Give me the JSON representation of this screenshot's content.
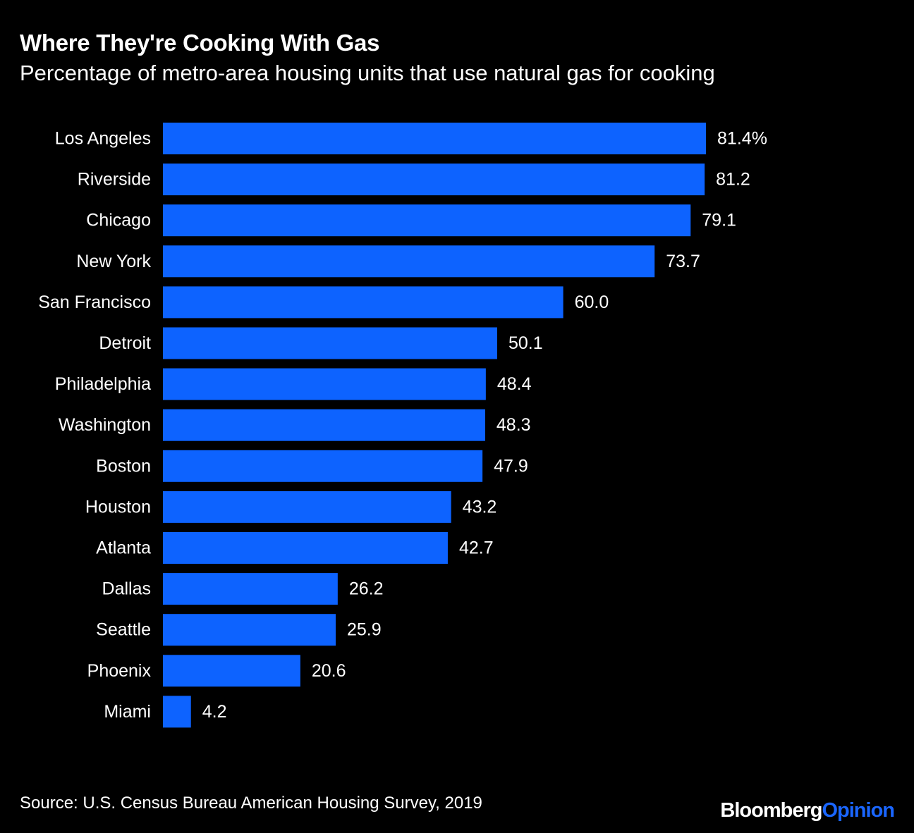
{
  "title": "Where They're Cooking With Gas",
  "subtitle": "Percentage of metro-area housing units that use natural gas for cooking",
  "source": "Source: U.S. Census Bureau American Housing Survey, 2019",
  "logo": {
    "brand": "Bloomberg",
    "section": "Opinion"
  },
  "colors": {
    "background": "#000000",
    "bar": "#0d63ff",
    "text": "#ffffff",
    "logo_accent": "#1a66ff"
  },
  "chart_data": {
    "type": "bar",
    "orientation": "horizontal",
    "title": "Where They're Cooking With Gas",
    "subtitle": "Percentage of metro-area housing units that use natural gas for cooking",
    "categories": [
      "Los Angeles",
      "Riverside",
      "Chicago",
      "New York",
      "San Francisco",
      "Detroit",
      "Philadelphia",
      "Washington",
      "Boston",
      "Houston",
      "Atlanta",
      "Dallas",
      "Seattle",
      "Phoenix",
      "Miami"
    ],
    "values": [
      81.4,
      81.2,
      79.1,
      73.7,
      60.0,
      50.1,
      48.4,
      48.3,
      47.9,
      43.2,
      42.7,
      26.2,
      25.9,
      20.6,
      4.2
    ],
    "value_labels": [
      "81.4%",
      "81.2",
      "79.1",
      "73.7",
      "60.0",
      "50.1",
      "48.4",
      "48.3",
      "47.9",
      "43.2",
      "42.7",
      "26.2",
      "25.9",
      "20.6",
      "4.2"
    ],
    "unit": "%",
    "xlim": [
      0,
      100
    ],
    "grid": false,
    "legend": "none"
  }
}
